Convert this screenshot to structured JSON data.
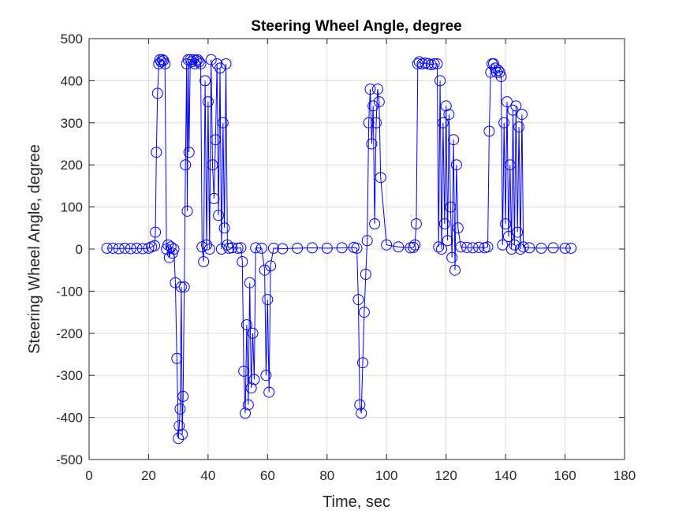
{
  "colors": {
    "series": "#0000ff",
    "grid": "#dcdcdc",
    "axis": "#262626"
  },
  "chart_data": {
    "type": "line",
    "title": "Steering Wheel Angle, degree",
    "xlabel": "Time, sec",
    "ylabel": "Steering Wheel Angle, degree",
    "xlim": [
      0,
      180
    ],
    "ylim": [
      -500,
      500
    ],
    "xticks": [
      0,
      20,
      40,
      60,
      80,
      100,
      120,
      140,
      160,
      180
    ],
    "yticks": [
      -500,
      -400,
      -300,
      -200,
      -100,
      0,
      100,
      200,
      300,
      400,
      500
    ],
    "grid": true,
    "marker": "circle",
    "series": [
      {
        "name": "",
        "x": [
          6,
          8,
          10,
          12,
          14,
          16,
          18,
          20,
          21,
          22,
          22.3,
          22.6,
          23,
          23.4,
          23.8,
          24.2,
          24.6,
          25,
          25.5,
          26,
          26.5,
          27,
          27.5,
          28,
          28.5,
          29,
          29.5,
          30,
          30.3,
          30.6,
          31,
          31.3,
          31.6,
          32,
          32.4,
          32.8,
          33,
          33.3,
          33.6,
          34,
          34.5,
          35,
          35.5,
          36,
          36.5,
          37,
          37.5,
          38,
          38.5,
          39,
          39.5,
          40,
          40.5,
          41,
          41.5,
          42,
          42.5,
          43,
          43.5,
          44,
          44.5,
          45,
          45.5,
          46,
          46.5,
          47,
          48,
          50,
          51,
          51.5,
          52,
          52.5,
          53,
          53.5,
          54,
          54.5,
          55,
          55.5,
          56,
          58,
          59,
          59.5,
          60,
          60.5,
          61,
          62,
          65,
          70,
          75,
          80,
          85,
          89,
          90,
          90.5,
          91,
          91.5,
          92,
          92.5,
          93,
          93.5,
          94,
          94.5,
          95,
          95.5,
          96,
          96.5,
          97,
          97.5,
          98,
          100,
          104,
          108,
          109,
          109.5,
          110,
          110.5,
          111,
          112,
          113,
          114,
          115,
          116,
          117,
          117.5,
          118,
          118.5,
          119,
          119.5,
          120,
          120.5,
          121,
          121.5,
          122,
          122.5,
          123,
          123.5,
          124,
          125,
          127,
          129,
          131,
          133,
          134,
          134.5,
          135,
          135.5,
          136,
          136.5,
          137,
          137.5,
          138,
          138.5,
          139,
          139.5,
          140,
          140.5,
          141,
          141.5,
          142,
          142.5,
          143,
          143.5,
          144,
          144.5,
          145,
          145.5,
          146,
          148,
          152,
          156,
          160,
          162
        ],
        "y": [
          2,
          2,
          1,
          2,
          1,
          2,
          1,
          2,
          5,
          8,
          40,
          230,
          370,
          440,
          450,
          445,
          450,
          448,
          440,
          0,
          10,
          -20,
          5,
          -10,
          0,
          -80,
          -260,
          -450,
          -420,
          -380,
          -90,
          -440,
          -350,
          -90,
          200,
          440,
          90,
          450,
          230,
          450,
          445,
          450,
          440,
          448,
          450,
          445,
          440,
          5,
          -30,
          400,
          10,
          350,
          0,
          450,
          200,
          120,
          260,
          440,
          80,
          430,
          0,
          300,
          50,
          440,
          10,
          2,
          3,
          2,
          3,
          -30,
          -290,
          -390,
          -180,
          -370,
          -80,
          -330,
          -200,
          -310,
          3,
          2,
          -50,
          -300,
          -120,
          -340,
          -40,
          2,
          1,
          2,
          3,
          2,
          3,
          4,
          2,
          -120,
          -370,
          -390,
          -270,
          -150,
          -60,
          20,
          300,
          380,
          250,
          340,
          60,
          300,
          380,
          350,
          170,
          10,
          5,
          3,
          4,
          10,
          60,
          440,
          445,
          440,
          442,
          440,
          438,
          440,
          440,
          5,
          400,
          0,
          300,
          60,
          340,
          20,
          320,
          100,
          -20,
          260,
          -50,
          200,
          50,
          5,
          4,
          3,
          4,
          3,
          5,
          280,
          420,
          440,
          440,
          430,
          420,
          425,
          420,
          410,
          10,
          300,
          60,
          350,
          30,
          200,
          0,
          330,
          10,
          340,
          40,
          290,
          0,
          320,
          5,
          3,
          2,
          3,
          2,
          2
        ]
      }
    ]
  }
}
